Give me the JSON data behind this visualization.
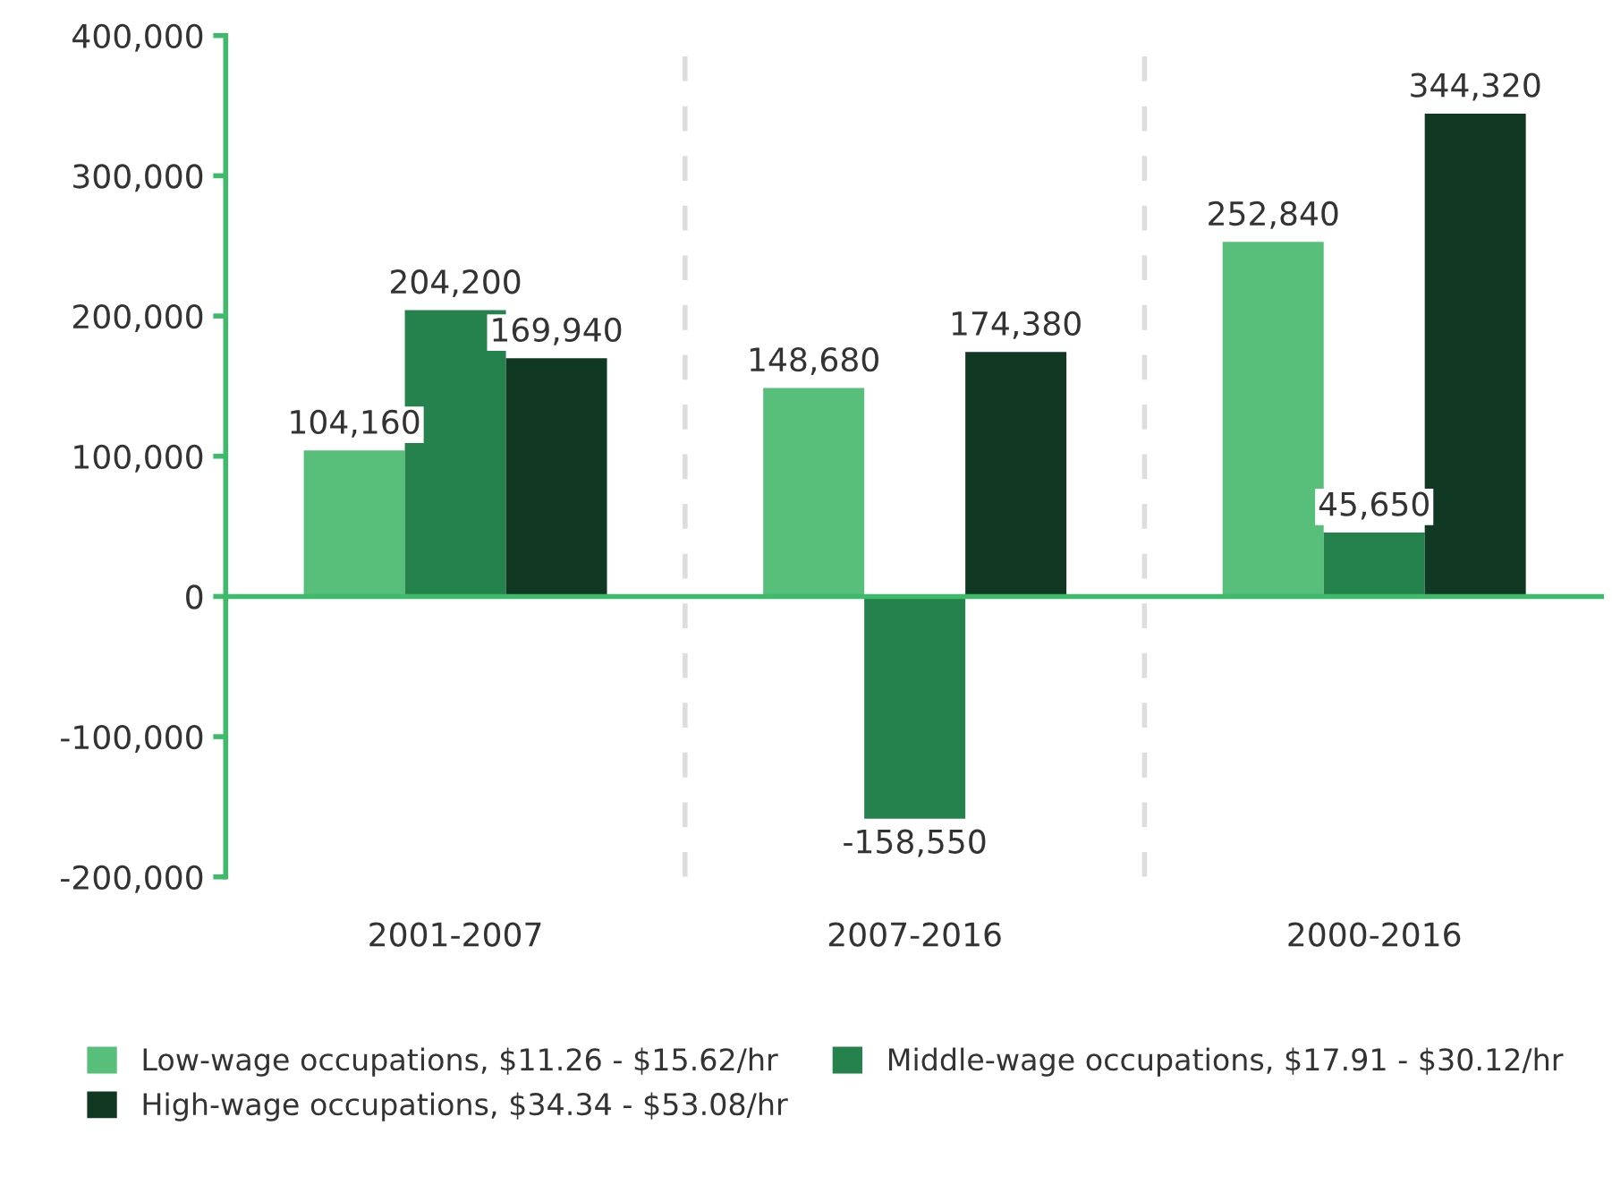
{
  "chart_data": {
    "type": "bar",
    "categories": [
      "2001-2007",
      "2007-2016",
      "2000-2016"
    ],
    "series": [
      {
        "name": "Low-wage occupations, $11.26 - $15.62/hr",
        "color": "#57bf79",
        "values": [
          104160,
          148680,
          252840
        ]
      },
      {
        "name": "Middle-wage occupations, $17.91 - $30.12/hr",
        "color": "#26824c",
        "values": [
          204200,
          -158550,
          45650
        ]
      },
      {
        "name": "High-wage occupations, $34.34 - $53.08/hr",
        "color": "#103822",
        "values": [
          169940,
          174380,
          344320
        ]
      }
    ],
    "ylim": [
      -200000,
      400000
    ],
    "yticks": [
      {
        "value": -200000,
        "label": "-200,000"
      },
      {
        "value": -100000,
        "label": "-100,000"
      },
      0,
      {
        "value": 100000,
        "label": "100,000"
      },
      {
        "value": 200000,
        "label": "200,000"
      },
      {
        "value": 300000,
        "label": "300,000"
      },
      {
        "value": 400000,
        "label": "400,000"
      }
    ],
    "value_labels": [
      [
        "104,160",
        "148,680",
        "252,840"
      ],
      [
        "204,200",
        "-158,550",
        "45,650"
      ],
      [
        "169,940",
        "174,380",
        "344,320"
      ]
    ],
    "ref_lines": [
      {
        "axis": "y",
        "value": 0,
        "color": "#3dba6a"
      }
    ],
    "grid": "x",
    "legend": "bottom"
  }
}
